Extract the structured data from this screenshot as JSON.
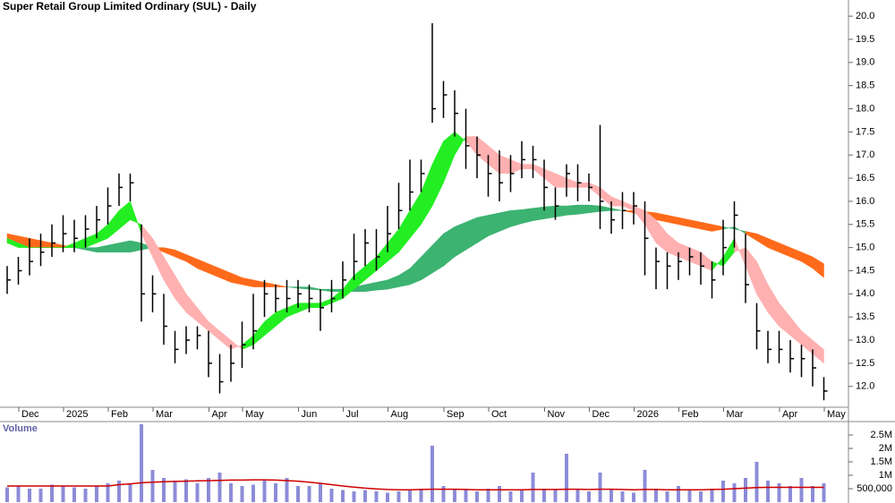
{
  "chart_data": {
    "type": "ohlc",
    "title": "Super Retail Group Limited Ordinary (SUL) - Daily",
    "categories": [
      null,
      null,
      "Dec",
      null,
      null,
      null,
      "2025",
      null,
      null,
      null,
      "Feb",
      null,
      null,
      null,
      "Mar",
      null,
      null,
      null,
      null,
      "Apr",
      null,
      null,
      "May",
      null,
      null,
      null,
      null,
      "Jun",
      null,
      null,
      null,
      "Jul",
      null,
      null,
      null,
      "Aug",
      null,
      null,
      null,
      null,
      "Sep",
      null,
      null,
      null,
      "Oct",
      null,
      null,
      null,
      null,
      "Nov",
      null,
      null,
      null,
      "Dec",
      null,
      null,
      null,
      "2026",
      null,
      null,
      null,
      "Feb",
      null,
      null,
      null,
      "Mar",
      null,
      null,
      null,
      null,
      "Apr",
      null,
      null,
      null,
      "May"
    ],
    "high": [
      14.6,
      14.8,
      15.2,
      15.3,
      15.5,
      15.7,
      15.6,
      15.7,
      15.9,
      16.3,
      16.6,
      16.6,
      15.5,
      14.4,
      14.0,
      13.2,
      13.3,
      13.3,
      13.2,
      12.7,
      12.9,
      13.4,
      14.0,
      14.3,
      14.2,
      14.3,
      14.3,
      14.2,
      14.1,
      14.3,
      14.7,
      15.3,
      15.4,
      15.4,
      15.9,
      16.4,
      16.9,
      16.9,
      19.85,
      18.6,
      18.4,
      18.0,
      17.4,
      17.0,
      17.1,
      17.0,
      17.3,
      17.2,
      16.9,
      16.3,
      16.8,
      16.8,
      16.6,
      17.65,
      16.0,
      16.2,
      16.2,
      16.0,
      15.0,
      14.9,
      14.9,
      15.0,
      14.9,
      14.7,
      15.6,
      16.0,
      15.3,
      13.8,
      13.2,
      13.2,
      13.0,
      12.9,
      12.8,
      12.2,
      null
    ],
    "low": [
      14.0,
      14.2,
      14.4,
      14.6,
      14.8,
      14.9,
      14.9,
      15.0,
      15.2,
      15.5,
      15.9,
      16.0,
      13.4,
      13.6,
      12.9,
      12.5,
      12.7,
      12.8,
      12.2,
      11.85,
      12.1,
      12.4,
      12.8,
      13.5,
      13.6,
      13.6,
      13.7,
      13.6,
      13.2,
      13.6,
      13.9,
      14.3,
      14.6,
      14.5,
      14.9,
      15.4,
      15.8,
      16.2,
      17.7,
      17.8,
      17.4,
      16.7,
      16.5,
      16.1,
      16.0,
      16.2,
      16.5,
      16.5,
      15.8,
      15.6,
      16.1,
      16.0,
      16.0,
      15.4,
      15.3,
      15.4,
      15.5,
      14.4,
      14.1,
      14.1,
      14.3,
      14.4,
      14.2,
      13.9,
      14.4,
      15.0,
      13.8,
      12.8,
      12.5,
      12.5,
      12.3,
      12.2,
      12.0,
      11.7,
      null
    ],
    "close": [
      14.3,
      14.5,
      14.7,
      14.9,
      15.1,
      15.3,
      15.2,
      15.4,
      15.6,
      15.9,
      16.3,
      16.4,
      14.0,
      14.0,
      13.3,
      12.8,
      13.0,
      13.1,
      12.5,
      12.1,
      12.5,
      12.9,
      13.2,
      14.0,
      13.9,
      13.9,
      14.0,
      13.9,
      13.7,
      13.9,
      14.3,
      14.7,
      15.1,
      14.8,
      15.3,
      15.8,
      16.2,
      16.6,
      18.0,
      18.3,
      17.9,
      17.2,
      17.0,
      16.6,
      16.4,
      16.6,
      16.9,
      16.9,
      16.3,
      15.9,
      16.6,
      16.4,
      16.3,
      16.0,
      15.6,
      15.8,
      15.9,
      15.2,
      14.7,
      14.6,
      14.7,
      14.8,
      14.6,
      14.3,
      15.0,
      15.7,
      14.2,
      13.2,
      12.8,
      12.8,
      12.6,
      12.6,
      12.4,
      11.9,
      null
    ],
    "color": "#000000",
    "ribbons": [
      {
        "fast": [
          15.1,
          15.1,
          15.0,
          15.0,
          15.0,
          15.0,
          15.0,
          15.0,
          15.0,
          15.05,
          15.1,
          15.15,
          15.1,
          15.0,
          14.9,
          14.8,
          14.7,
          14.55,
          14.45,
          14.35,
          14.25,
          14.2,
          14.15,
          14.15,
          14.15,
          14.15,
          14.15,
          14.15,
          14.1,
          14.1,
          14.1,
          14.15,
          14.2,
          14.25,
          14.3,
          14.4,
          14.55,
          14.8,
          15.05,
          15.3,
          15.45,
          15.55,
          15.65,
          15.7,
          15.75,
          15.8,
          15.82,
          15.85,
          15.88,
          15.9,
          15.9,
          15.92,
          15.92,
          15.9,
          15.85,
          15.8,
          15.75,
          15.7,
          15.6,
          15.55,
          15.5,
          15.45,
          15.4,
          15.35,
          15.4,
          15.45,
          15.3,
          15.15,
          15.0,
          14.9,
          14.8,
          14.7,
          14.55,
          14.35,
          null
        ],
        "slow": [
          15.3,
          15.25,
          15.2,
          15.15,
          15.1,
          15.05,
          15.0,
          14.95,
          14.9,
          14.9,
          14.9,
          14.9,
          14.95,
          15.0,
          15.0,
          14.95,
          14.85,
          14.75,
          14.65,
          14.55,
          14.45,
          14.35,
          14.3,
          14.25,
          14.2,
          14.15,
          14.12,
          14.1,
          14.08,
          14.05,
          14.05,
          14.05,
          14.05,
          14.08,
          14.1,
          14.15,
          14.2,
          14.3,
          14.45,
          14.6,
          14.8,
          14.95,
          15.1,
          15.25,
          15.35,
          15.45,
          15.52,
          15.58,
          15.62,
          15.66,
          15.7,
          15.72,
          15.75,
          15.78,
          15.8,
          15.8,
          15.8,
          15.78,
          15.75,
          15.7,
          15.65,
          15.6,
          15.55,
          15.5,
          15.45,
          15.4,
          15.35,
          15.3,
          15.2,
          15.1,
          15.0,
          14.9,
          14.8,
          14.65,
          null
        ],
        "up_color": "#3cb371",
        "down_color": "#ff6a1a"
      },
      {
        "fast": [
          15.2,
          15.1,
          15.0,
          15.0,
          15.0,
          15.0,
          15.1,
          15.2,
          15.3,
          15.5,
          15.8,
          16.0,
          15.3,
          14.8,
          14.3,
          13.9,
          13.6,
          13.4,
          13.2,
          13.0,
          12.8,
          12.9,
          13.1,
          13.4,
          13.6,
          13.7,
          13.8,
          13.8,
          13.8,
          13.9,
          14.1,
          14.4,
          14.6,
          14.8,
          15.1,
          15.4,
          15.8,
          16.2,
          16.8,
          17.3,
          17.5,
          17.3,
          17.0,
          16.8,
          16.6,
          16.6,
          16.7,
          16.7,
          16.5,
          16.3,
          16.3,
          16.3,
          16.3,
          16.1,
          15.9,
          15.9,
          15.8,
          15.5,
          15.1,
          14.9,
          14.8,
          14.7,
          14.6,
          14.5,
          14.8,
          15.2,
          14.6,
          14.0,
          13.6,
          13.3,
          13.1,
          12.9,
          12.7,
          12.5,
          null
        ],
        "slow": [
          15.1,
          15.0,
          15.0,
          15.0,
          15.0,
          15.0,
          15.0,
          15.0,
          15.1,
          15.2,
          15.4,
          15.6,
          15.5,
          15.2,
          14.8,
          14.4,
          14.0,
          13.7,
          13.4,
          13.2,
          13.0,
          12.8,
          12.9,
          13.1,
          13.3,
          13.5,
          13.6,
          13.7,
          13.7,
          13.8,
          13.9,
          14.1,
          14.3,
          14.5,
          14.7,
          14.9,
          15.2,
          15.5,
          15.9,
          16.4,
          17.0,
          17.4,
          17.4,
          17.2,
          17.0,
          16.9,
          16.8,
          16.8,
          16.7,
          16.6,
          16.5,
          16.4,
          16.4,
          16.3,
          16.1,
          16.0,
          15.9,
          15.8,
          15.6,
          15.3,
          15.1,
          15.0,
          14.9,
          14.7,
          14.6,
          14.9,
          15.0,
          14.7,
          14.2,
          13.8,
          13.5,
          13.2,
          13.0,
          12.8,
          null
        ],
        "up_color": "#22ee22",
        "down_color": "#ffb0b0"
      }
    ],
    "ylim": [
      11.55,
      20.35
    ],
    "yticks": [
      {
        "value": 12,
        "label": "12.0"
      },
      12.5,
      {
        "value": 13,
        "label": "13.0"
      },
      13.5,
      {
        "value": 14,
        "label": "14.0"
      },
      14.5,
      {
        "value": 15,
        "label": "15.0"
      },
      15.5,
      {
        "value": 16,
        "label": "16.0"
      },
      16.5,
      {
        "value": 17,
        "label": "17.0"
      },
      17.5,
      {
        "value": 18,
        "label": "18.0"
      },
      18.5,
      {
        "value": 19,
        "label": "19.0"
      },
      19.5,
      {
        "value": 20,
        "label": "20.0"
      }
    ],
    "volume": {
      "label": "Volume",
      "values": [
        550000,
        600000,
        500000,
        500000,
        650000,
        600000,
        550000,
        500000,
        600000,
        700000,
        800000,
        700000,
        2900000,
        1200000,
        900000,
        800000,
        850000,
        700000,
        900000,
        1100000,
        700000,
        600000,
        650000,
        800000,
        700000,
        900000,
        600000,
        600000,
        700000,
        500000,
        450000,
        400000,
        450000,
        400000,
        350000,
        400000,
        450000,
        500000,
        2100000,
        600000,
        500000,
        450000,
        400000,
        500000,
        600000,
        400000,
        450000,
        1100000,
        500000,
        450000,
        1800000,
        500000,
        400000,
        1100000,
        500000,
        400000,
        350000,
        1200000,
        500000,
        400000,
        600000,
        450000,
        400000,
        500000,
        800000,
        700000,
        900000,
        1500000,
        800000,
        700000,
        600000,
        900000,
        600000,
        700000,
        null
      ],
      "color": "#8c8cd8",
      "average": [
        600000,
        600000,
        600000,
        600000,
        600000,
        600000,
        600000,
        600000,
        600000,
        600000,
        650000,
        680000,
        720000,
        740000,
        760000,
        770000,
        780000,
        790000,
        800000,
        810000,
        820000,
        820000,
        830000,
        830000,
        820000,
        800000,
        780000,
        740000,
        700000,
        650000,
        600000,
        560000,
        520000,
        490000,
        470000,
        460000,
        460000,
        470000,
        480000,
        480000,
        480000,
        470000,
        460000,
        460000,
        460000,
        460000,
        460000,
        470000,
        470000,
        470000,
        480000,
        480000,
        470000,
        480000,
        480000,
        470000,
        460000,
        470000,
        470000,
        460000,
        460000,
        460000,
        460000,
        470000,
        480000,
        500000,
        520000,
        540000,
        550000,
        550000,
        550000,
        550000,
        550000,
        550000,
        null
      ],
      "average_color": "#d00000",
      "ylim": [
        0,
        3000000
      ],
      "yticks": [
        {
          "value": 500000,
          "label": "500,000"
        },
        {
          "value": 1000000,
          "label": "1M"
        },
        {
          "value": 1500000,
          "label": "1.5M"
        },
        {
          "value": 2000000,
          "label": "2M"
        },
        {
          "value": 2500000,
          "label": "2.5M"
        }
      ]
    }
  }
}
